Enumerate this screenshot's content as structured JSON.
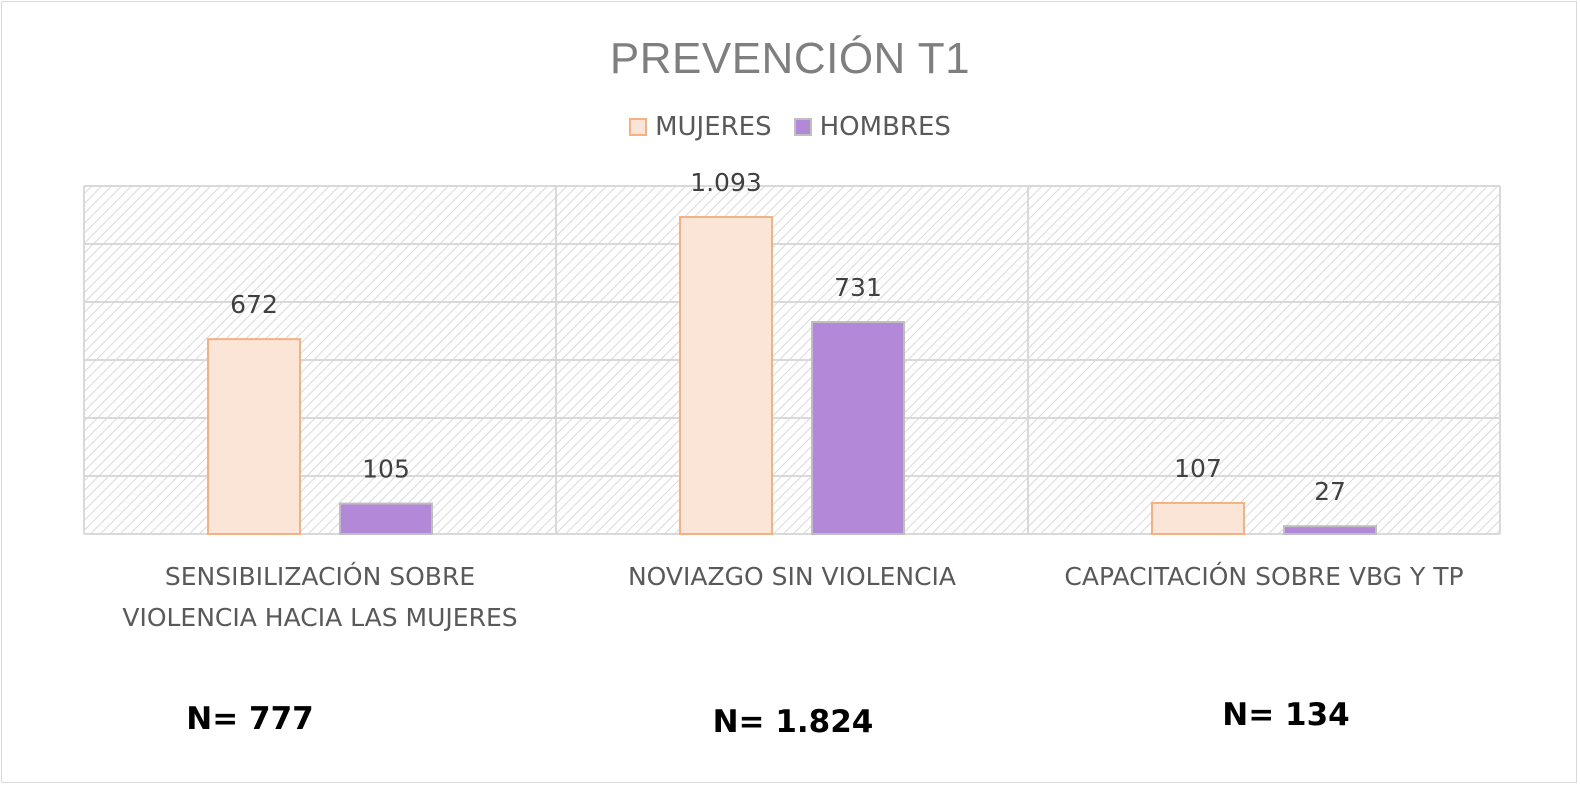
{
  "chart_data": {
    "type": "bar",
    "title": "PREVENCIÓN T1",
    "categories": [
      "SENSIBILIZACIÓN SOBRE VIOLENCIA HACIA LAS MUJERES",
      "NOVIAZGO SIN VIOLENCIA",
      "CAPACITACIÓN SOBRE VBG Y TP"
    ],
    "category_lines": [
      [
        "SENSIBILIZACIÓN SOBRE",
        "VIOLENCIA HACIA LAS MUJERES"
      ],
      [
        "NOVIAZGO SIN VIOLENCIA"
      ],
      [
        "CAPACITACIÓN SOBRE VBG Y TP"
      ]
    ],
    "series": [
      {
        "name": "MUJERES",
        "values": [
          672,
          1093,
          107
        ],
        "labels": [
          "672",
          "1.093",
          "107"
        ],
        "fill": "#fbe5d6",
        "stroke": "#f4b183"
      },
      {
        "name": "HOMBRES",
        "values": [
          105,
          731,
          27
        ],
        "labels": [
          "105",
          "731",
          "27"
        ],
        "fill": "#b388d9",
        "stroke": "#bfbfbf"
      }
    ],
    "ylim": [
      0,
      1200
    ],
    "grid": true,
    "legend": "top-center",
    "totals": [
      "N= 777",
      "N= 1.824",
      "N= 134"
    ]
  }
}
